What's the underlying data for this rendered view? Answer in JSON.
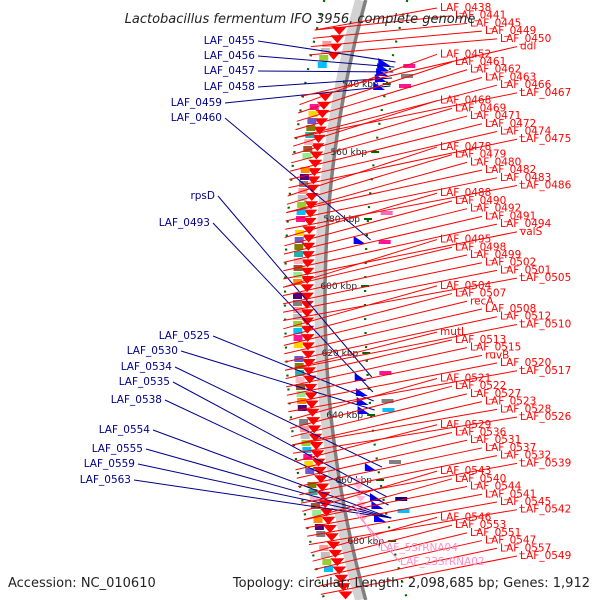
{
  "title": "Lactobacillus fermentum IFO 3956, complete genome",
  "footer": {
    "accession": "Accession: NC_010610",
    "summary": "Topology: circular; Length: 2,098,685 bp; Genes: 1,912"
  },
  "ticks": [
    "540 kbp",
    "560 kbp",
    "580 kbp",
    "600 kbp",
    "620 kbp",
    "640 kbp",
    "660 kbp",
    "680 kbp"
  ],
  "left_labels": [
    "LAF_0455",
    "LAF_0456",
    "LAF_0457",
    "LAF_0458",
    "LAF_0459",
    "LAF_0460",
    "rpsD",
    "LAF_0493",
    "LAF_0525",
    "LAF_0530",
    "LAF_0534",
    "LAF_0535",
    "LAF_0538",
    "LAF_0554",
    "LAF_0555",
    "LAF_0559",
    "LAF_0563"
  ],
  "right_labels": [
    "LAF_0438",
    "LAF_0441",
    "LAF_0445",
    "LAF_0449",
    "LAF_0450",
    "ddl",
    "LAF_0452",
    "LAF_0461",
    "LAF_0462",
    "LAF_0463",
    "LAF_0466",
    "LAF_0467",
    "LAF_0468",
    "LAF_0469",
    "LAF_0471",
    "LAF_0472",
    "LAF_0474",
    "LAF_0475",
    "LAF_0478",
    "LAF_0479",
    "LAF_0480",
    "LAF_0482",
    "LAF_0483",
    "LAF_0486",
    "LAF_0488",
    "LAF_0490",
    "LAF_0492",
    "LAF_0491",
    "LAF_0494",
    "valS",
    "LAF_0495",
    "LAF_0498",
    "LAF_0499",
    "LAF_0502",
    "LAF_0501",
    "LAF_0505",
    "LAF_0504",
    "LAF_0507",
    "recA",
    "LAF_0508",
    "LAF_0512",
    "LAF_0510",
    "mutL",
    "LAF_0513",
    "LAF_0515",
    "ruvB",
    "LAF_0520",
    "LAF_0517",
    "LAF_0521",
    "LAF_0522",
    "LAF_0527",
    "LAF_0523",
    "LAF_0528",
    "LAF_0526",
    "LAF_0529",
    "LAF_0536",
    "LAF_0531",
    "LAF_0537",
    "LAF_0532",
    "LAF_0539",
    "LAF_0543",
    "LAF_0540",
    "LAF_0544",
    "LAF_0541",
    "LAF_0545",
    "LAF_0542",
    "LAF_0546",
    "LAF_0553",
    "LAF_0551",
    "LAF_0547",
    "LAF_0557",
    "LAF_0549"
  ],
  "rna_labels": [
    "LAF_5SrRNA04",
    "LAF_23SrRNA02"
  ],
  "colors": {
    "left_label": "#00008b",
    "right_label": "#ff0000",
    "rna_label": "#ff8fc8",
    "backbone": "#808080",
    "forward_cds": "#ff0000",
    "reverse_cds": "#0000ff",
    "tick": "#006400"
  }
}
